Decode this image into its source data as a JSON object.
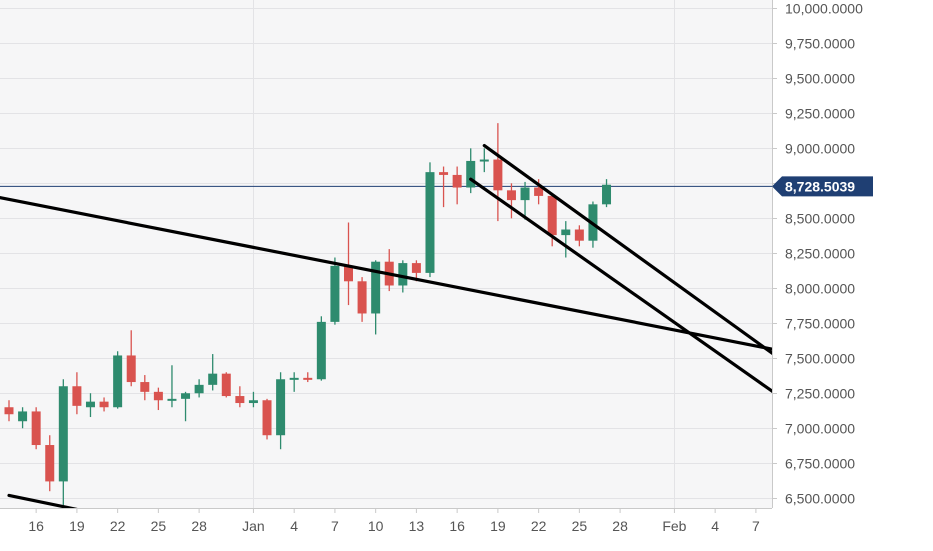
{
  "chart_data": {
    "type": "candlestick",
    "ylim": [
      6430,
      10060
    ],
    "y_ticks": [
      6500,
      6750,
      7000,
      7250,
      7500,
      7750,
      8000,
      8250,
      8500,
      8750,
      9000,
      9250,
      9500,
      9750,
      10000
    ],
    "y_tick_labels": [
      "6,500.0000",
      "6,750.0000",
      "7,000.0000",
      "7,250.0000",
      "7,500.0000",
      "7,750.0000",
      "8,000.0000",
      "8,250.0000",
      "8,500.0000",
      "8,750.0000",
      "9,000.0000",
      "9,250.0000",
      "9,500.0000",
      "9,750.0000",
      "10,000.0000"
    ],
    "x_tick_labels": [
      "16",
      "19",
      "22",
      "25",
      "28",
      "Jan",
      "4",
      "7",
      "10",
      "13",
      "16",
      "19",
      "22",
      "25",
      "28",
      "Feb",
      "4",
      "7"
    ],
    "current_price": 8728.5039,
    "current_price_label": "8,728.5039",
    "grid": true,
    "colors": {
      "up": "#2e8b6e",
      "down": "#d9534f",
      "trendline": "#000000",
      "price_line": "#1f3f73",
      "price_tag": "#1f3f73"
    },
    "candles": [
      {
        "date": "Dec 14",
        "o": 7150,
        "h": 7200,
        "l": 7050,
        "c": 7100
      },
      {
        "date": "Dec 15",
        "o": 7050,
        "h": 7150,
        "l": 7000,
        "c": 7120
      },
      {
        "date": "Dec 16",
        "o": 7120,
        "h": 7150,
        "l": 6850,
        "c": 6880
      },
      {
        "date": "Dec 17",
        "o": 6880,
        "h": 6950,
        "l": 6550,
        "c": 6620
      },
      {
        "date": "Dec 18",
        "o": 6620,
        "h": 7350,
        "l": 6450,
        "c": 7300
      },
      {
        "date": "Dec 19",
        "o": 7300,
        "h": 7400,
        "l": 7100,
        "c": 7160
      },
      {
        "date": "Dec 20",
        "o": 7150,
        "h": 7250,
        "l": 7080,
        "c": 7190
      },
      {
        "date": "Dec 21",
        "o": 7190,
        "h": 7220,
        "l": 7120,
        "c": 7150
      },
      {
        "date": "Dec 22",
        "o": 7150,
        "h": 7550,
        "l": 7140,
        "c": 7520
      },
      {
        "date": "Dec 23",
        "o": 7520,
        "h": 7700,
        "l": 7300,
        "c": 7330
      },
      {
        "date": "Dec 24",
        "o": 7330,
        "h": 7380,
        "l": 7200,
        "c": 7260
      },
      {
        "date": "Dec 25",
        "o": 7260,
        "h": 7290,
        "l": 7130,
        "c": 7200
      },
      {
        "date": "Dec 26",
        "o": 7200,
        "h": 7450,
        "l": 7150,
        "c": 7210
      },
      {
        "date": "Dec 27",
        "o": 7210,
        "h": 7260,
        "l": 7050,
        "c": 7250
      },
      {
        "date": "Dec 28",
        "o": 7250,
        "h": 7350,
        "l": 7220,
        "c": 7310
      },
      {
        "date": "Dec 29",
        "o": 7310,
        "h": 7530,
        "l": 7270,
        "c": 7390
      },
      {
        "date": "Dec 30",
        "o": 7390,
        "h": 7400,
        "l": 7220,
        "c": 7230
      },
      {
        "date": "Dec 31",
        "o": 7230,
        "h": 7300,
        "l": 7150,
        "c": 7180
      },
      {
        "date": "Jan 1",
        "o": 7180,
        "h": 7260,
        "l": 7150,
        "c": 7200
      },
      {
        "date": "Jan 2",
        "o": 7200,
        "h": 7210,
        "l": 6920,
        "c": 6950
      },
      {
        "date": "Jan 3",
        "o": 6950,
        "h": 7400,
        "l": 6850,
        "c": 7350
      },
      {
        "date": "Jan 4",
        "o": 7350,
        "h": 7400,
        "l": 7260,
        "c": 7360
      },
      {
        "date": "Jan 5",
        "o": 7360,
        "h": 7400,
        "l": 7330,
        "c": 7350
      },
      {
        "date": "Jan 6",
        "o": 7350,
        "h": 7800,
        "l": 7340,
        "c": 7760
      },
      {
        "date": "Jan 7",
        "o": 7760,
        "h": 8220,
        "l": 7740,
        "c": 8160
      },
      {
        "date": "Jan 8",
        "o": 8160,
        "h": 8470,
        "l": 7880,
        "c": 8050
      },
      {
        "date": "Jan 9",
        "o": 8050,
        "h": 8080,
        "l": 7760,
        "c": 7820
      },
      {
        "date": "Jan 10",
        "o": 7820,
        "h": 8200,
        "l": 7670,
        "c": 8190
      },
      {
        "date": "Jan 11",
        "o": 8190,
        "h": 8280,
        "l": 7980,
        "c": 8020
      },
      {
        "date": "Jan 12",
        "o": 8020,
        "h": 8200,
        "l": 7970,
        "c": 8180
      },
      {
        "date": "Jan 13",
        "o": 8180,
        "h": 8200,
        "l": 8050,
        "c": 8110
      },
      {
        "date": "Jan 14",
        "o": 8110,
        "h": 8900,
        "l": 8080,
        "c": 8830
      },
      {
        "date": "Jan 15",
        "o": 8830,
        "h": 8870,
        "l": 8580,
        "c": 8810
      },
      {
        "date": "Jan 16",
        "o": 8810,
        "h": 8870,
        "l": 8600,
        "c": 8720
      },
      {
        "date": "Jan 17",
        "o": 8720,
        "h": 9000,
        "l": 8680,
        "c": 8910
      },
      {
        "date": "Jan 18",
        "o": 8910,
        "h": 9000,
        "l": 8830,
        "c": 8920
      },
      {
        "date": "Jan 19",
        "o": 8920,
        "h": 9180,
        "l": 8480,
        "c": 8700
      },
      {
        "date": "Jan 20",
        "o": 8700,
        "h": 8750,
        "l": 8500,
        "c": 8630
      },
      {
        "date": "Jan 21",
        "o": 8630,
        "h": 8760,
        "l": 8490,
        "c": 8720
      },
      {
        "date": "Jan 22",
        "o": 8720,
        "h": 8780,
        "l": 8600,
        "c": 8660
      },
      {
        "date": "Jan 23",
        "o": 8660,
        "h": 8680,
        "l": 8300,
        "c": 8380
      },
      {
        "date": "Jan 24",
        "o": 8380,
        "h": 8480,
        "l": 8220,
        "c": 8420
      },
      {
        "date": "Jan 25",
        "o": 8420,
        "h": 8450,
        "l": 8300,
        "c": 8340
      },
      {
        "date": "Jan 26",
        "o": 8340,
        "h": 8620,
        "l": 8290,
        "c": 8600
      },
      {
        "date": "Jan 27",
        "o": 8600,
        "h": 8780,
        "l": 8580,
        "c": 8740
      }
    ],
    "trendlines": [
      {
        "name": "long-descending-trendline",
        "from": {
          "date": "Dec 9",
          "value": 8730
        },
        "to": {
          "date": "Feb 9",
          "value": 7550
        }
      },
      {
        "name": "lower-left-trendline",
        "from": {
          "date": "Dec 14",
          "value": 6520
        },
        "to": {
          "date": "Dec 19",
          "value": 6420
        }
      },
      {
        "name": "channel-upper-line",
        "from": {
          "date": "Jan 18",
          "value": 9020
        },
        "to": {
          "date": "Feb 9",
          "value": 7480
        }
      },
      {
        "name": "channel-lower-line",
        "from": {
          "date": "Jan 17",
          "value": 8780
        },
        "to": {
          "date": "Feb 9",
          "value": 7210
        }
      }
    ]
  }
}
